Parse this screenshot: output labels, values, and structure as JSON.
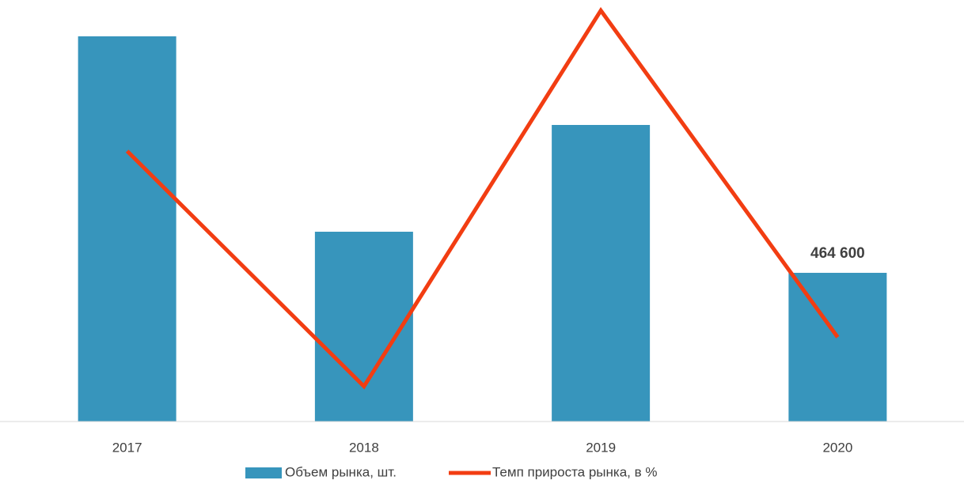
{
  "chart_data": {
    "type": "bar_line",
    "categories": [
      "2017",
      "2018",
      "2019",
      "2020"
    ],
    "series": [
      {
        "name": "Объем рынка, шт.",
        "type": "bar",
        "color": "#3795bc",
        "values": [
          1203600,
          593000,
          926600,
          464600
        ],
        "value_labels": [
          null,
          null,
          null,
          "464 600"
        ]
      },
      {
        "name": "Темп прироста рынка, в %",
        "type": "line",
        "color": "#f23d12",
        "axis": "y2",
        "values": [
          16,
          -51,
          56,
          -37
        ]
      }
    ],
    "ylim": [
      0,
      1317000
    ],
    "y2lim": [
      -61,
      59
    ],
    "grid": false
  }
}
